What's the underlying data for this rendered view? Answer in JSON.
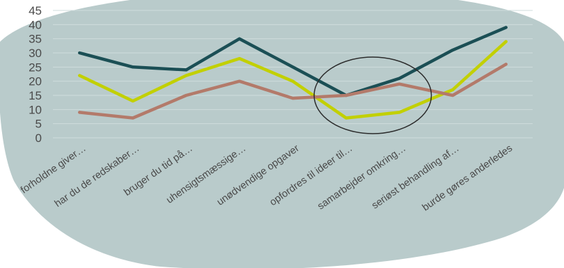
{
  "chart_data": {
    "type": "line",
    "title": "",
    "xlabel": "",
    "ylabel": "",
    "ylim": [
      0,
      45
    ],
    "yticks": [
      0,
      5,
      10,
      15,
      20,
      25,
      30,
      35,
      40,
      45
    ],
    "grid": true,
    "legend": "none",
    "background_color": "#b9cbcb",
    "categories": [
      "forholdne giver…",
      "har du de redskaber…",
      "bruger du tid på…",
      "uhensigtsmæssige…",
      "unødvendige opgaver",
      "opfordres til ideer til…",
      "samarbejder omkring…",
      "seriøst behandling af…",
      "burde gøres anderledes"
    ],
    "series": [
      {
        "color": "#1b4f55",
        "values": [
          30,
          25,
          24,
          35,
          25,
          15,
          21,
          31,
          39
        ]
      },
      {
        "color": "#c2d000",
        "values": [
          22,
          13,
          22,
          28,
          20,
          7,
          9,
          17,
          34
        ]
      },
      {
        "color": "#b37a6a",
        "values": [
          9,
          7,
          15,
          20,
          14,
          15,
          19,
          15,
          26
        ]
      }
    ],
    "annotation": {
      "shape": "ellipse",
      "color": "#2b2b2b",
      "around_categories": [
        "opfordres til ideer til…",
        "samarbejder omkring…"
      ]
    }
  }
}
